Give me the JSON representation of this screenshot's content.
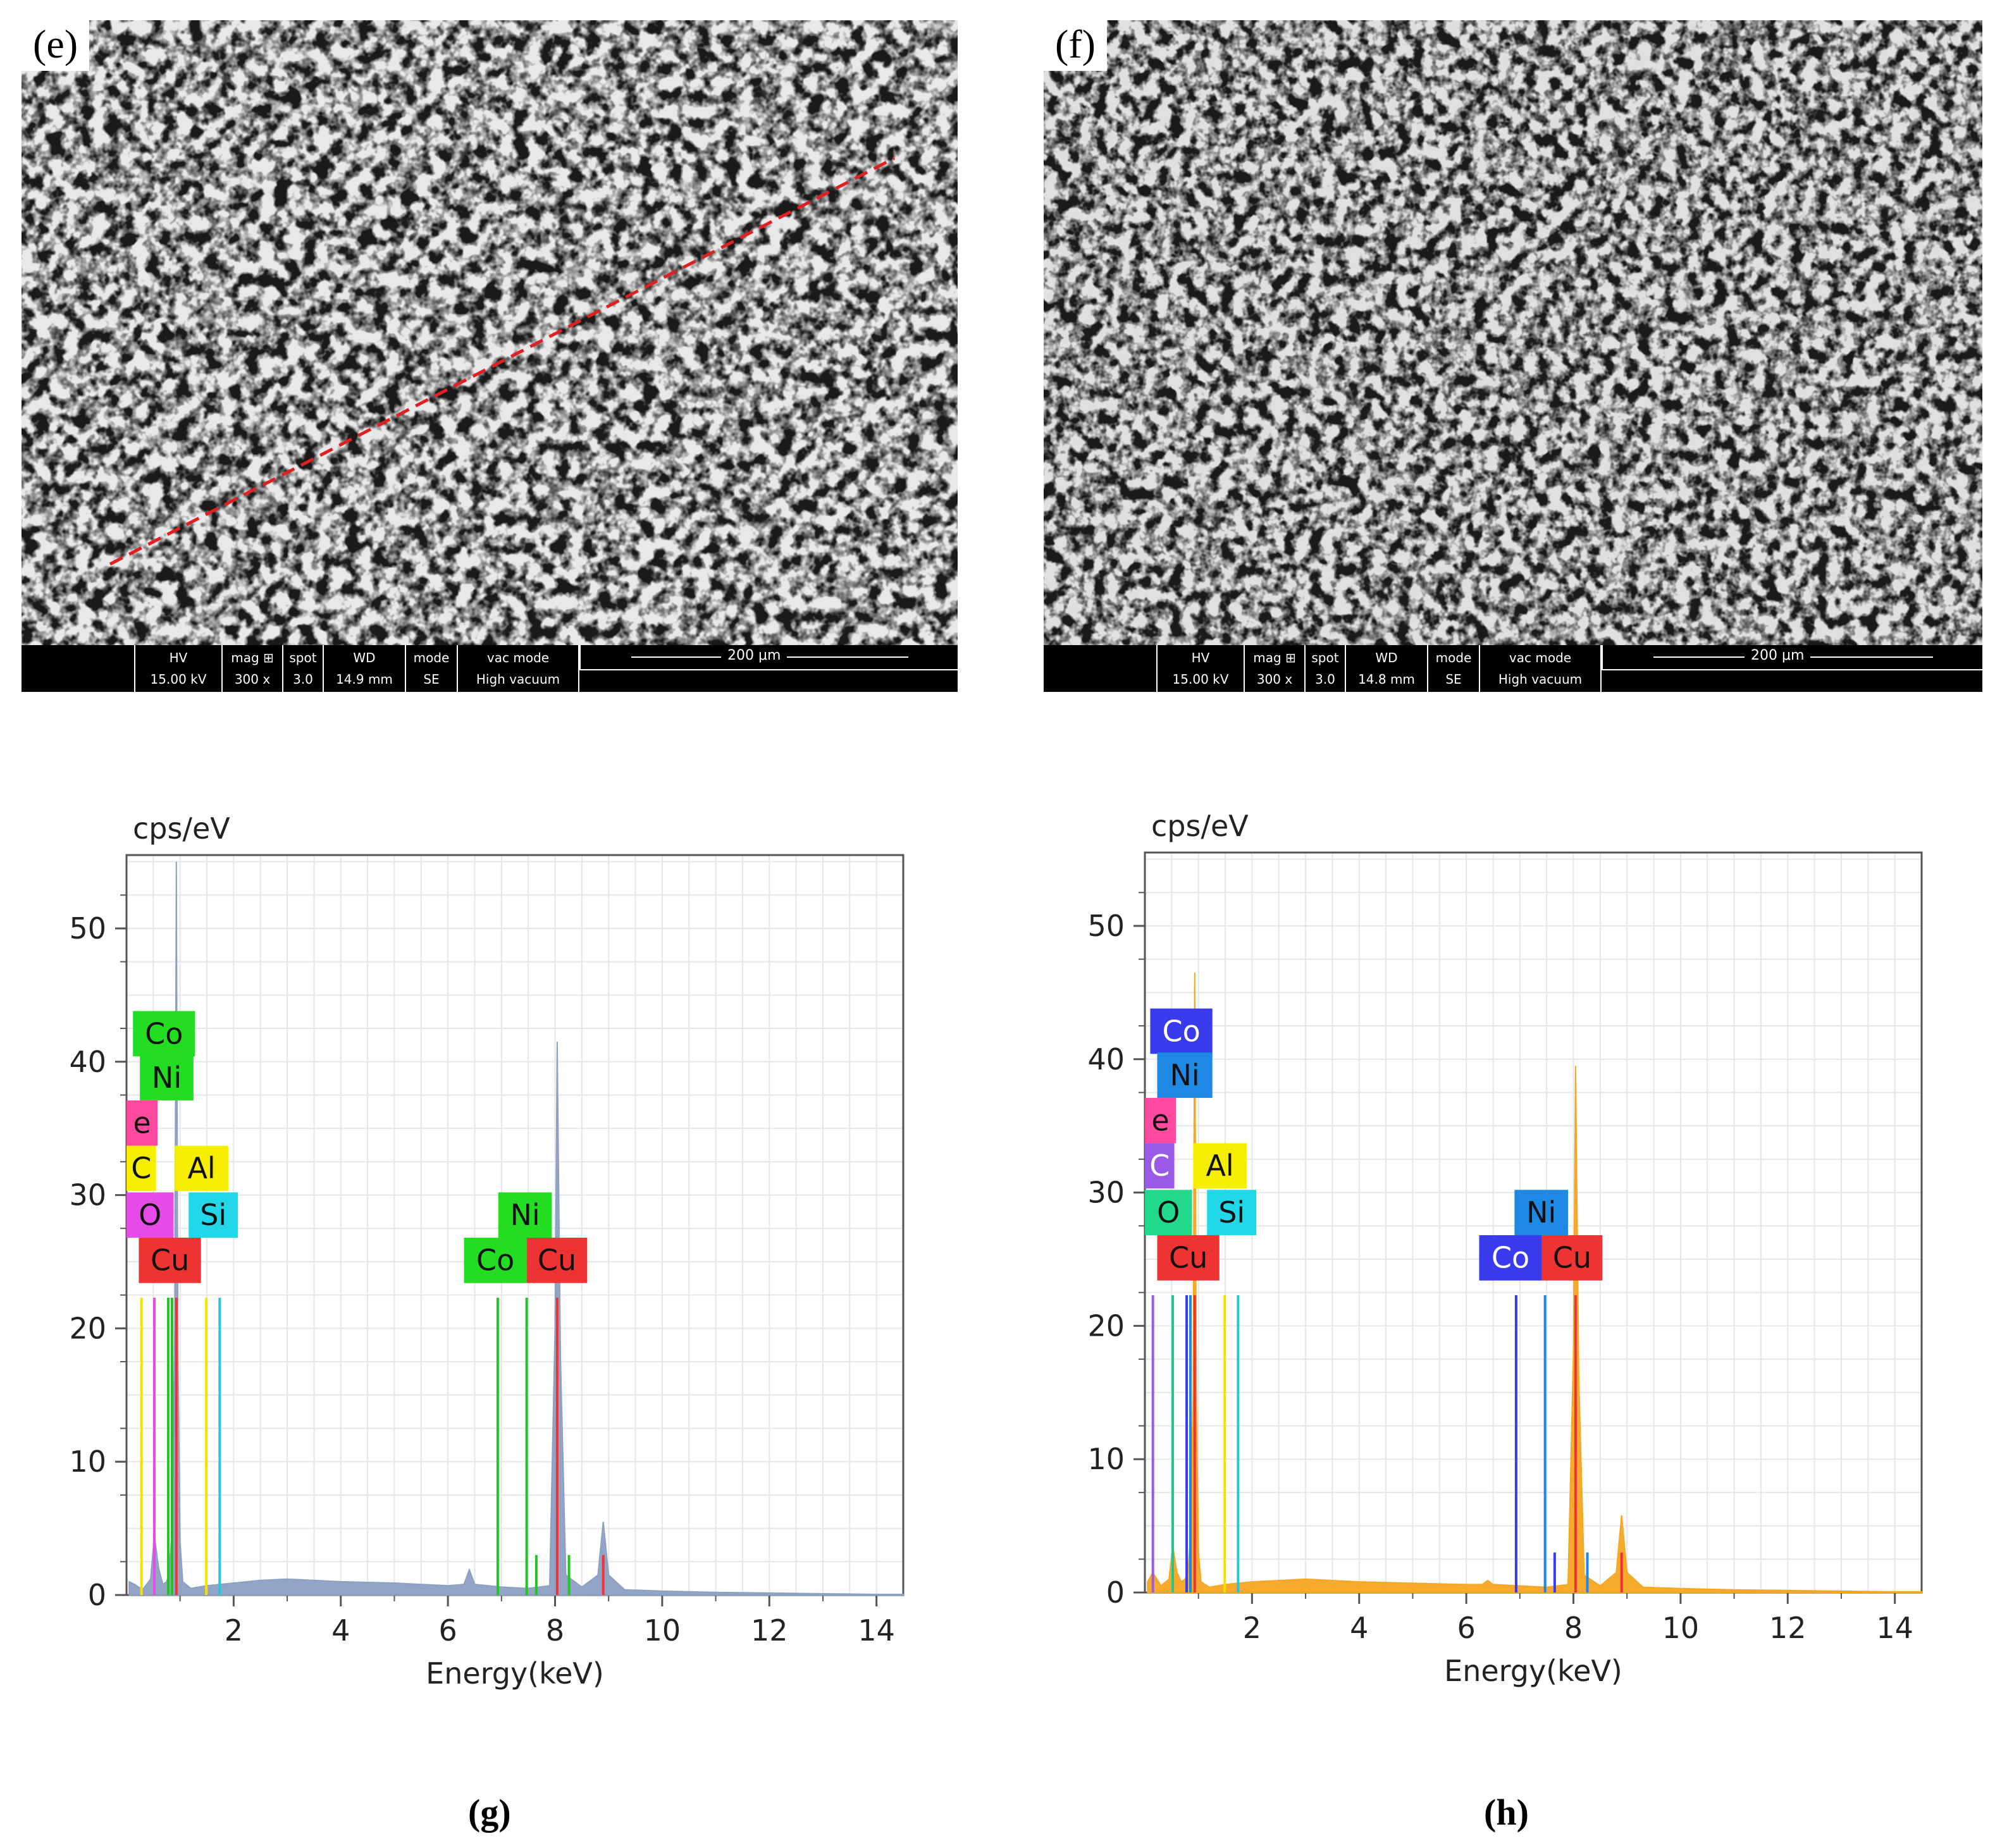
{
  "panels": {
    "e": {
      "letter": "(e)"
    },
    "f": {
      "letter": "(f)"
    }
  },
  "sem_databar": {
    "headers": [
      "HV",
      "mag ⊞",
      "spot",
      "WD",
      "mode",
      "vac mode"
    ],
    "values_e": [
      "15.00 kV",
      "300 x",
      "3.0",
      "14.9 mm",
      "SE",
      "High vacuum"
    ],
    "values_f": [
      "15.00 kV",
      "300 x",
      "3.0",
      "14.8 mm",
      "SE",
      "High vacuum"
    ],
    "scale_label": "200 μm"
  },
  "captions": {
    "g": "(g)",
    "h": "(h)"
  },
  "chart_data": [
    {
      "id": "g",
      "type": "area",
      "ylabel": "cps/eV",
      "xlabel": "Energy(keV)",
      "xlim": [
        0,
        14.5
      ],
      "ylim": [
        0,
        55.5
      ],
      "xticks": [
        2,
        4,
        6,
        8,
        10,
        12,
        14
      ],
      "yticks": [
        0,
        10,
        20,
        30,
        40,
        50
      ],
      "grid": true,
      "spectrum_color": "#8da0c4",
      "spectrum": [
        [
          0.05,
          1.0
        ],
        [
          0.15,
          0.8
        ],
        [
          0.3,
          0.4
        ],
        [
          0.45,
          1.2
        ],
        [
          0.52,
          4.5
        ],
        [
          0.6,
          2.0
        ],
        [
          0.68,
          0.8
        ],
        [
          0.75,
          1.0
        ],
        [
          0.8,
          1.8
        ],
        [
          0.85,
          5.0
        ],
        [
          0.9,
          20.0
        ],
        [
          0.93,
          55.0
        ],
        [
          0.96,
          18.0
        ],
        [
          1.0,
          4.0
        ],
        [
          1.05,
          1.0
        ],
        [
          1.2,
          0.5
        ],
        [
          1.5,
          0.7
        ],
        [
          2.0,
          0.9
        ],
        [
          2.5,
          1.1
        ],
        [
          3.0,
          1.2
        ],
        [
          3.5,
          1.1
        ],
        [
          4.0,
          1.0
        ],
        [
          5.0,
          0.9
        ],
        [
          6.0,
          0.7
        ],
        [
          6.3,
          0.8
        ],
        [
          6.4,
          1.9
        ],
        [
          6.5,
          0.8
        ],
        [
          7.0,
          0.6
        ],
        [
          7.5,
          0.5
        ],
        [
          7.9,
          0.7
        ],
        [
          8.0,
          20.0
        ],
        [
          8.04,
          41.5
        ],
        [
          8.1,
          18.0
        ],
        [
          8.2,
          1.5
        ],
        [
          8.5,
          0.6
        ],
        [
          8.8,
          1.5
        ],
        [
          8.9,
          5.5
        ],
        [
          9.0,
          1.5
        ],
        [
          9.3,
          0.4
        ],
        [
          10.0,
          0.3
        ],
        [
          11.0,
          0.2
        ],
        [
          12.0,
          0.15
        ],
        [
          13.0,
          0.1
        ],
        [
          14.0,
          0.05
        ],
        [
          14.5,
          0.05
        ]
      ],
      "markers": [
        {
          "x": 0.28,
          "h": 22.3,
          "color": "#f5e000"
        },
        {
          "x": 0.52,
          "h": 22.3,
          "color": "#e84ae8"
        },
        {
          "x": 0.78,
          "h": 22.3,
          "color": "#22c522"
        },
        {
          "x": 0.85,
          "h": 22.3,
          "color": "#22c522"
        },
        {
          "x": 0.93,
          "h": 22.3,
          "color": "#ee3333"
        },
        {
          "x": 1.49,
          "h": 22.3,
          "color": "#f5e000"
        },
        {
          "x": 1.74,
          "h": 22.3,
          "color": "#22c8d8"
        },
        {
          "x": 6.93,
          "h": 22.3,
          "color": "#22c522"
        },
        {
          "x": 7.47,
          "h": 22.3,
          "color": "#22c522"
        },
        {
          "x": 8.04,
          "h": 22.3,
          "color": "#ee3333"
        },
        {
          "x": 7.65,
          "h": 3.0,
          "color": "#22c522"
        },
        {
          "x": 8.26,
          "h": 3.0,
          "color": "#22c522"
        },
        {
          "x": 8.9,
          "h": 3.0,
          "color": "#ee3333"
        }
      ],
      "tags": [
        {
          "text": "Co",
          "x": 0.12,
          "y": 40.4,
          "w": 1.16,
          "bg": "#22dd22",
          "fg": "#111111"
        },
        {
          "text": "Ni",
          "x": 0.25,
          "y": 37.1,
          "w": 1.0,
          "bg": "#22dd22",
          "fg": "#111111"
        },
        {
          "text": "e",
          "x": 0.0,
          "y": 33.7,
          "w": 0.58,
          "bg": "#ff4aa0",
          "fg": "#111111"
        },
        {
          "text": "C",
          "x": 0.0,
          "y": 30.3,
          "w": 0.55,
          "bg": "#f5ee00",
          "fg": "#111111"
        },
        {
          "text": "Al",
          "x": 0.9,
          "y": 30.3,
          "w": 1.0,
          "bg": "#f5ee00",
          "fg": "#111111"
        },
        {
          "text": "O",
          "x": 0.0,
          "y": 26.8,
          "w": 0.88,
          "bg": "#e84ae8",
          "fg": "#111111"
        },
        {
          "text": "Si",
          "x": 1.16,
          "y": 26.8,
          "w": 0.92,
          "bg": "#22d8e8",
          "fg": "#111111"
        },
        {
          "text": "Cu",
          "x": 0.23,
          "y": 23.4,
          "w": 1.16,
          "bg": "#ee3333",
          "fg": "#111111"
        },
        {
          "text": "Ni",
          "x": 6.94,
          "y": 26.8,
          "w": 1.0,
          "bg": "#22dd22",
          "fg": "#111111"
        },
        {
          "text": "Co",
          "x": 6.3,
          "y": 23.4,
          "w": 1.17,
          "bg": "#22dd22",
          "fg": "#111111"
        },
        {
          "text": "Cu",
          "x": 7.47,
          "y": 23.4,
          "w": 1.13,
          "bg": "#ee3333",
          "fg": "#111111"
        }
      ]
    },
    {
      "id": "h",
      "type": "area",
      "ylabel": "cps/eV",
      "xlabel": "Energy(keV)",
      "xlim": [
        0,
        14.5
      ],
      "ylim": [
        0,
        55.5
      ],
      "xticks": [
        2,
        4,
        6,
        8,
        10,
        12,
        14
      ],
      "yticks": [
        0,
        10,
        20,
        30,
        40,
        50
      ],
      "grid": true,
      "spectrum_color": "#f5a623",
      "spectrum": [
        [
          0.05,
          0.8
        ],
        [
          0.15,
          1.5
        ],
        [
          0.3,
          0.5
        ],
        [
          0.45,
          1.0
        ],
        [
          0.52,
          3.5
        ],
        [
          0.6,
          1.5
        ],
        [
          0.68,
          0.8
        ],
        [
          0.75,
          1.0
        ],
        [
          0.8,
          1.5
        ],
        [
          0.85,
          4.0
        ],
        [
          0.9,
          15.0
        ],
        [
          0.93,
          46.5
        ],
        [
          0.96,
          15.0
        ],
        [
          1.0,
          3.0
        ],
        [
          1.05,
          0.8
        ],
        [
          1.2,
          0.4
        ],
        [
          1.5,
          0.6
        ],
        [
          2.0,
          0.8
        ],
        [
          2.5,
          0.9
        ],
        [
          3.0,
          1.0
        ],
        [
          3.5,
          0.9
        ],
        [
          4.0,
          0.8
        ],
        [
          5.0,
          0.7
        ],
        [
          6.0,
          0.6
        ],
        [
          6.3,
          0.6
        ],
        [
          6.4,
          0.9
        ],
        [
          6.5,
          0.6
        ],
        [
          7.0,
          0.5
        ],
        [
          7.5,
          0.4
        ],
        [
          7.9,
          0.6
        ],
        [
          8.0,
          18.0
        ],
        [
          8.04,
          39.5
        ],
        [
          8.1,
          16.0
        ],
        [
          8.2,
          1.3
        ],
        [
          8.5,
          0.5
        ],
        [
          8.8,
          1.5
        ],
        [
          8.9,
          5.8
        ],
        [
          9.0,
          1.5
        ],
        [
          9.3,
          0.4
        ],
        [
          10.0,
          0.3
        ],
        [
          11.0,
          0.2
        ],
        [
          12.0,
          0.15
        ],
        [
          13.0,
          0.1
        ],
        [
          14.0,
          0.05
        ],
        [
          14.5,
          0.05
        ]
      ],
      "markers": [
        {
          "x": 0.15,
          "h": 22.3,
          "color": "#9b59e8"
        },
        {
          "x": 0.52,
          "h": 22.3,
          "color": "#22c58a"
        },
        {
          "x": 0.78,
          "h": 22.3,
          "color": "#3b3bee"
        },
        {
          "x": 0.85,
          "h": 22.3,
          "color": "#1e88e5"
        },
        {
          "x": 0.93,
          "h": 22.3,
          "color": "#ee3333"
        },
        {
          "x": 1.49,
          "h": 22.3,
          "color": "#f5e000"
        },
        {
          "x": 1.74,
          "h": 22.3,
          "color": "#22c8d8"
        },
        {
          "x": 6.93,
          "h": 22.3,
          "color": "#3b3bee"
        },
        {
          "x": 7.47,
          "h": 22.3,
          "color": "#1e88e5"
        },
        {
          "x": 8.04,
          "h": 22.3,
          "color": "#ee3333"
        },
        {
          "x": 7.65,
          "h": 3.0,
          "color": "#3b3bee"
        },
        {
          "x": 8.26,
          "h": 3.0,
          "color": "#1e88e5"
        },
        {
          "x": 8.9,
          "h": 3.0,
          "color": "#ee3333"
        }
      ],
      "tags": [
        {
          "text": "Co",
          "x": 0.1,
          "y": 40.4,
          "w": 1.16,
          "bg": "#3b3bee",
          "fg": "#ffffff"
        },
        {
          "text": "Ni",
          "x": 0.23,
          "y": 37.1,
          "w": 1.03,
          "bg": "#1e88e5",
          "fg": "#111111"
        },
        {
          "text": "e",
          "x": 0.0,
          "y": 33.7,
          "w": 0.58,
          "bg": "#ff4aa0",
          "fg": "#111111"
        },
        {
          "text": "C",
          "x": 0.0,
          "y": 30.3,
          "w": 0.55,
          "bg": "#9b59e8",
          "fg": "#ffffff"
        },
        {
          "text": "Al",
          "x": 0.9,
          "y": 30.3,
          "w": 1.0,
          "bg": "#f5ee00",
          "fg": "#111111"
        },
        {
          "text": "O",
          "x": 0.0,
          "y": 26.8,
          "w": 0.88,
          "bg": "#22d88a",
          "fg": "#111111"
        },
        {
          "text": "Si",
          "x": 1.16,
          "y": 26.8,
          "w": 0.92,
          "bg": "#22d8e8",
          "fg": "#111111"
        },
        {
          "text": "Cu",
          "x": 0.23,
          "y": 23.4,
          "w": 1.16,
          "bg": "#ee3333",
          "fg": "#111111"
        },
        {
          "text": "Ni",
          "x": 6.9,
          "y": 26.8,
          "w": 1.0,
          "bg": "#1e88e5",
          "fg": "#111111"
        },
        {
          "text": "Co",
          "x": 6.24,
          "y": 23.4,
          "w": 1.17,
          "bg": "#3b3bee",
          "fg": "#ffffff"
        },
        {
          "text": "Cu",
          "x": 7.41,
          "y": 23.4,
          "w": 1.13,
          "bg": "#ee3333",
          "fg": "#111111"
        }
      ]
    }
  ]
}
